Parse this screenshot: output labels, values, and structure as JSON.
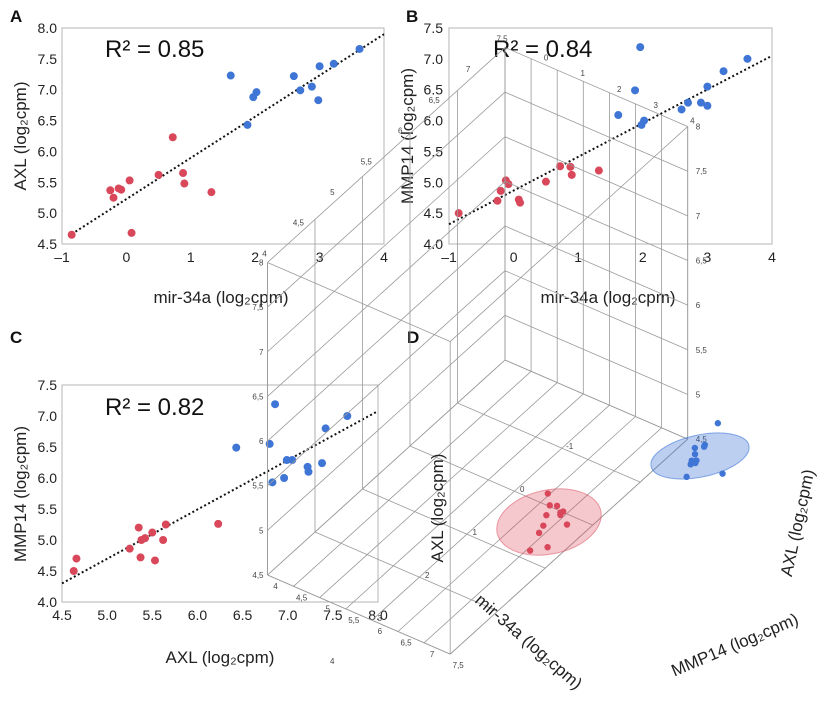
{
  "colors": {
    "red": "#d9485a",
    "blue": "#3f76d6",
    "frame": "#b5b5b5",
    "grid3d": "#9a9a9a",
    "fit": "#111111"
  },
  "chart_data": [
    {
      "panel": "A",
      "type": "scatter",
      "r2_text": "R² = 0.85",
      "xlabel": "mir-34a (log₂cpm)",
      "ylabel": "AXL (log₂cpm)",
      "xlim": [
        -1,
        4
      ],
      "ylim": [
        4.5,
        8.0
      ],
      "xticks": [
        "–1",
        "0",
        "1",
        "2",
        "3",
        "4"
      ],
      "yticks": [
        "4.5",
        "5.0",
        "5.5",
        "6.0",
        "6.5",
        "7.0",
        "7.5",
        "8.0"
      ],
      "trendline": [
        [
          -0.85,
          4.66
        ],
        [
          4,
          7.9
        ]
      ],
      "series": [
        {
          "color": "red",
          "points": [
            [
              -0.85,
              4.65
            ],
            [
              -0.25,
              5.37
            ],
            [
              -0.2,
              5.25
            ],
            [
              -0.12,
              5.4
            ],
            [
              -0.08,
              5.38
            ],
            [
              0.05,
              5.53
            ],
            [
              0.08,
              4.68
            ],
            [
              0.5,
              5.62
            ],
            [
              0.72,
              6.23
            ],
            [
              0.88,
              5.65
            ],
            [
              0.9,
              5.48
            ],
            [
              1.32,
              5.34
            ]
          ]
        },
        {
          "color": "blue",
          "points": [
            [
              1.62,
              7.23
            ],
            [
              1.88,
              6.43
            ],
            [
              1.97,
              6.88
            ],
            [
              2.02,
              6.96
            ],
            [
              2.6,
              7.22
            ],
            [
              2.7,
              6.99
            ],
            [
              2.88,
              7.05
            ],
            [
              2.98,
              6.83
            ],
            [
              3.0,
              7.38
            ],
            [
              3.22,
              7.42
            ],
            [
              3.62,
              7.66
            ]
          ]
        }
      ]
    },
    {
      "panel": "B",
      "type": "scatter",
      "r2_text": "R² = 0.84",
      "xlabel": "mir-34a (log₂cpm)",
      "ylabel": "MMP14 (log₂cpm)",
      "xlim": [
        -1,
        4
      ],
      "ylim": [
        4.0,
        7.5
      ],
      "xticks": [
        "–1",
        "0",
        "1",
        "2",
        "3",
        "4"
      ],
      "yticks": [
        "4.0",
        "4.5",
        "5.0",
        "5.5",
        "6.0",
        "6.5",
        "7.0",
        "7.5"
      ],
      "trendline": [
        [
          -1,
          4.32
        ],
        [
          4,
          7.05
        ]
      ],
      "series": [
        {
          "color": "red",
          "points": [
            [
              -0.85,
              4.5
            ],
            [
              -0.25,
              4.7
            ],
            [
              -0.2,
              4.86
            ],
            [
              -0.12,
              5.03
            ],
            [
              -0.08,
              4.97
            ],
            [
              0.08,
              4.72
            ],
            [
              0.1,
              4.67
            ],
            [
              0.5,
              5.01
            ],
            [
              0.72,
              5.26
            ],
            [
              0.88,
              5.25
            ],
            [
              0.9,
              5.12
            ],
            [
              1.32,
              5.19
            ]
          ]
        },
        {
          "color": "blue",
          "points": [
            [
              1.62,
              6.09
            ],
            [
              1.88,
              6.49
            ],
            [
              1.96,
              7.19
            ],
            [
              1.98,
              5.93
            ],
            [
              2.02,
              6.0
            ],
            [
              2.6,
              6.18
            ],
            [
              2.7,
              6.29
            ],
            [
              2.9,
              6.29
            ],
            [
              3.0,
              6.55
            ],
            [
              3.0,
              6.24
            ],
            [
              3.25,
              6.8
            ],
            [
              3.62,
              7.0
            ]
          ]
        }
      ]
    },
    {
      "panel": "C",
      "type": "scatter",
      "r2_text": "R² = 0.82",
      "xlabel": "AXL (log₂cpm)",
      "ylabel": "MMP14 (log₂cpm)",
      "xlim": [
        4.5,
        8.0
      ],
      "ylim": [
        4.0,
        7.5
      ],
      "xticks": [
        "4.5",
        "5.0",
        "5.5",
        "6.0",
        "6.5",
        "7.0",
        "7.5",
        "8.0"
      ],
      "yticks": [
        "4.0",
        "4.5",
        "5.0",
        "5.5",
        "6.0",
        "6.5",
        "7.0",
        "7.5"
      ],
      "trendline": [
        [
          4.5,
          4.3
        ],
        [
          8.0,
          7.08
        ]
      ],
      "series": [
        {
          "color": "red",
          "points": [
            [
              4.63,
              4.5
            ],
            [
              4.66,
              4.7
            ],
            [
              5.25,
              4.86
            ],
            [
              5.35,
              5.2
            ],
            [
              5.37,
              4.72
            ],
            [
              5.38,
              5.0
            ],
            [
              5.42,
              5.03
            ],
            [
              5.5,
              5.12
            ],
            [
              5.53,
              4.67
            ],
            [
              5.62,
              5.0
            ],
            [
              5.65,
              5.25
            ],
            [
              6.23,
              5.26
            ]
          ]
        },
        {
          "color": "blue",
          "points": [
            [
              6.43,
              6.49
            ],
            [
              6.8,
              6.55
            ],
            [
              6.83,
              5.93
            ],
            [
              6.86,
              7.19
            ],
            [
              6.96,
              6.0
            ],
            [
              6.99,
              6.29
            ],
            [
              7.05,
              6.29
            ],
            [
              7.22,
              6.18
            ],
            [
              7.23,
              6.1
            ],
            [
              7.38,
              6.24
            ],
            [
              7.42,
              6.8
            ],
            [
              7.66,
              7.0
            ]
          ]
        }
      ]
    },
    {
      "panel": "D",
      "type": "scatter3d",
      "axis_labels": {
        "left": "AXL (log₂cpm)",
        "right": "AXL (log₂cpm)",
        "front_left": "mir-34a (log₂cpm)",
        "front_right": "MMP14 (log₂cpm)"
      },
      "front_left_ticks": [
        "-1",
        "0",
        "1",
        "2",
        "3",
        "4"
      ],
      "front_right_ticks": [
        "4",
        "4,5",
        "5",
        "5,5",
        "6",
        "6,5",
        "7",
        "7,5"
      ],
      "vertical_ticks": [
        "4,5",
        "5",
        "5,5",
        "6",
        "6,5",
        "7",
        "7,5",
        "8"
      ],
      "top_back_ticks": [
        "4",
        "4,5",
        "5",
        "5,5",
        "6",
        "6,5",
        "7",
        "7,5"
      ],
      "top_right_ticks": [
        "0",
        "1",
        "2",
        "3",
        "4"
      ],
      "series": [
        {
          "color": "red",
          "points": [
            [
              -0.85,
              4.65,
              4.5
            ],
            [
              -0.25,
              5.37,
              4.7
            ],
            [
              -0.2,
              5.25,
              4.86
            ],
            [
              -0.12,
              5.4,
              5.03
            ],
            [
              -0.08,
              5.38,
              4.97
            ],
            [
              0.05,
              5.53,
              4.72
            ],
            [
              0.08,
              4.68,
              4.67
            ],
            [
              0.5,
              5.62,
              5.01
            ],
            [
              0.72,
              6.23,
              5.26
            ],
            [
              0.88,
              5.65,
              5.25
            ],
            [
              0.9,
              5.48,
              5.12
            ],
            [
              1.32,
              5.34,
              5.19
            ]
          ]
        },
        {
          "color": "blue",
          "points": [
            [
              1.62,
              7.23,
              6.09
            ],
            [
              1.88,
              6.43,
              6.49
            ],
            [
              1.97,
              6.88,
              5.93
            ],
            [
              2.02,
              6.96,
              6.0
            ],
            [
              2.6,
              7.22,
              6.18
            ],
            [
              2.7,
              6.99,
              6.29
            ],
            [
              2.88,
              7.05,
              6.29
            ],
            [
              2.98,
              6.83,
              6.24
            ],
            [
              3.0,
              7.38,
              6.55
            ],
            [
              3.22,
              7.42,
              6.8
            ],
            [
              3.62,
              7.66,
              7.0
            ]
          ]
        }
      ]
    }
  ]
}
